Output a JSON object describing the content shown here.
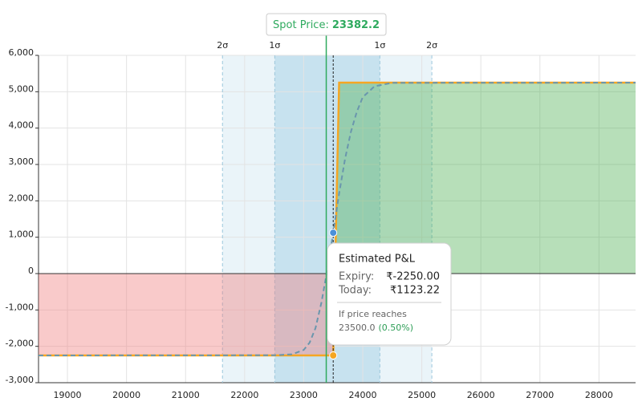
{
  "chart_data": {
    "type": "line",
    "xlim": [
      18510,
      28620
    ],
    "ylim": [
      -3000,
      6000
    ],
    "xticks": [
      19000,
      20000,
      21000,
      22000,
      23000,
      24000,
      25000,
      26000,
      27000,
      28000
    ],
    "yticks": [
      {
        "value": -3000,
        "label": "-3,000"
      },
      {
        "value": -2000,
        "label": "-2,000"
      },
      {
        "value": -1000,
        "label": "-1,000"
      },
      0,
      {
        "value": 1000,
        "label": "1,000"
      },
      {
        "value": 2000,
        "label": "2,000"
      },
      {
        "value": 3000,
        "label": "3,000"
      },
      {
        "value": 4000,
        "label": "4,000"
      },
      {
        "value": 5000,
        "label": "5,000"
      },
      {
        "value": 6000,
        "label": "6,000"
      }
    ],
    "grid": true,
    "spot": {
      "label": "Spot Price:",
      "value": 23382.2,
      "color": "#2eaa5e"
    },
    "sigma": [
      {
        "value": 21625,
        "label": "2σ"
      },
      {
        "value": 22510,
        "label": "1σ"
      },
      {
        "value": 24290,
        "label": "1σ"
      },
      {
        "value": 25170,
        "label": "2σ"
      }
    ],
    "series": [
      {
        "name": "Expiry:",
        "color": "#f5a623",
        "x": [
          18510,
          23500,
          23600,
          28620
        ],
        "values": [
          -2250,
          -2250,
          5250,
          5250
        ]
      },
      {
        "name": "Today:",
        "color": "#6a96ad",
        "dash": true,
        "x": [
          18510,
          22500,
          22800,
          23000,
          23100,
          23200,
          23300,
          23400,
          23500,
          23600,
          23700,
          23800,
          23900,
          24000,
          24200,
          24500,
          28620
        ],
        "values": [
          -2250,
          -2245,
          -2220,
          -2100,
          -1900,
          -1500,
          -800,
          100,
          1123.22,
          2200,
          3150,
          3900,
          4450,
          4850,
          5150,
          5245,
          5250
        ]
      }
    ],
    "profit_color": "#4caf50",
    "loss_color": "#f08080",
    "tooltip": {
      "title": "Estimated P&L",
      "expiry": {
        "value": -2250,
        "label": "₹-2250.00",
        "color": "#e53935"
      },
      "today": {
        "value": 1123.22,
        "label": "₹1123.22",
        "color": "#2e9e57"
      },
      "prompt": "If price reaches",
      "price": {
        "value": 23500,
        "label": "23500.0"
      },
      "change": "(0.50%)",
      "change_color": "#2e9e57"
    }
  }
}
